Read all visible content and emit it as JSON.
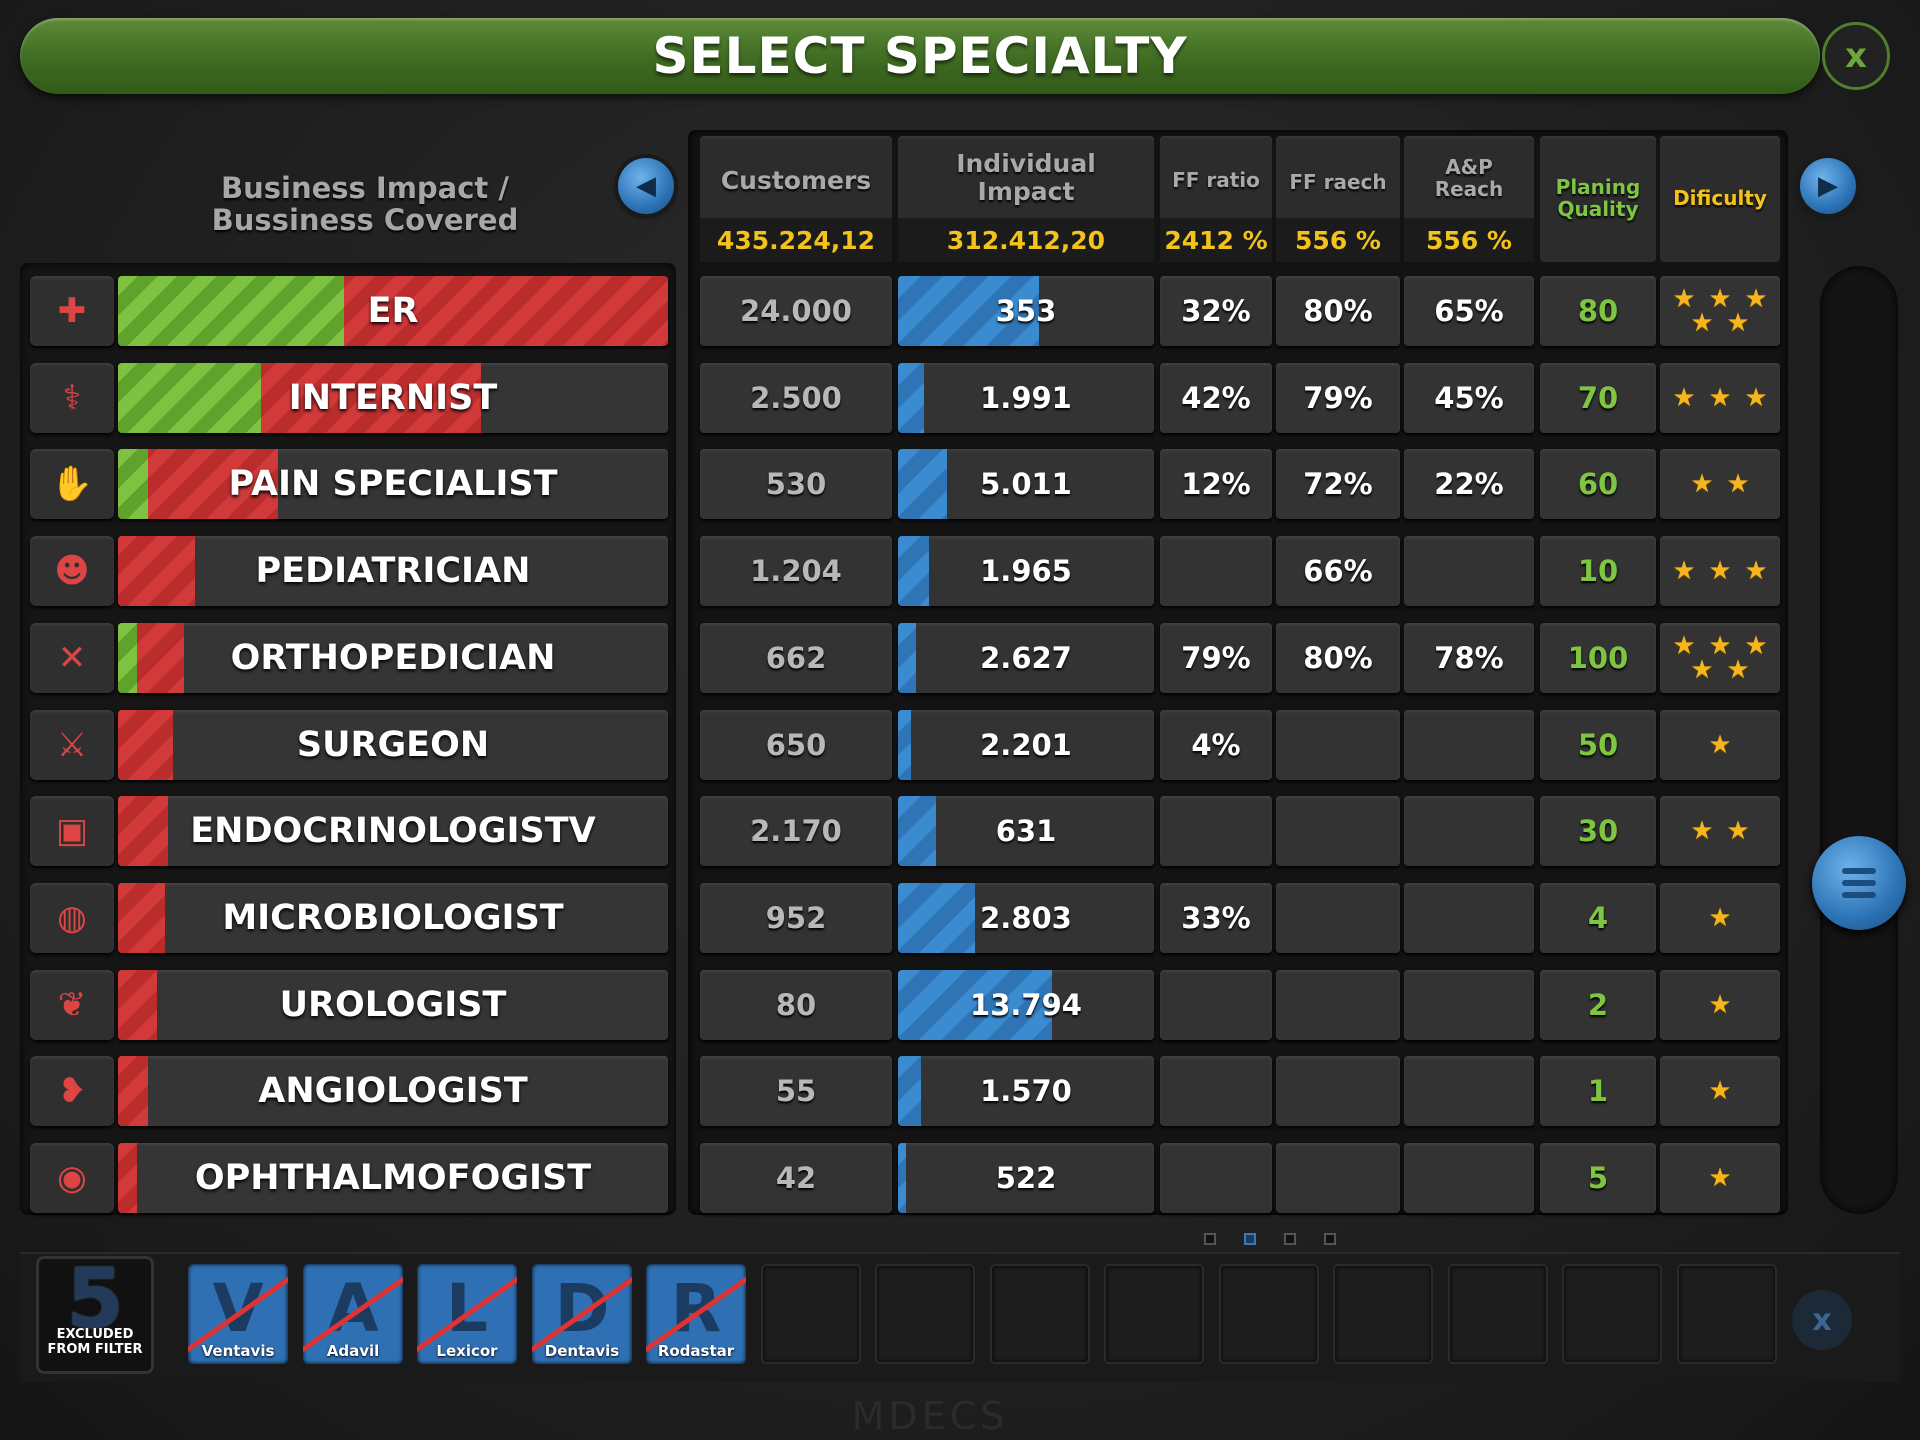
{
  "header": {
    "title": "SELECT SPECIALTY",
    "close_label": "x"
  },
  "left_header": {
    "line1": "Business Impact /",
    "line2": "Bussiness Covered"
  },
  "columns": {
    "customers": {
      "label": "Customers",
      "total": "435.224,12"
    },
    "impact": {
      "label_line1": "Individual",
      "label_line2": "Impact",
      "total": "312.412,20"
    },
    "ff_ratio": {
      "label": "FF ratio",
      "total": "2412 %"
    },
    "ff_reach": {
      "label": "FF raech",
      "total": "556 %"
    },
    "ap_reach": {
      "label_line1": "A&P",
      "label_line2": "Reach",
      "total": "556 %"
    },
    "quality": {
      "label_line1": "Planing",
      "label_line2": "Quality"
    },
    "difficulty": {
      "label": "Dificulty"
    }
  },
  "rows": [
    {
      "name": "ER",
      "icon": "medical-kit-icon",
      "green": 0.41,
      "red": 0.59,
      "customers": "24.000",
      "impact": "353",
      "impact_level": 0.55,
      "ff_ratio": "32%",
      "ff_reach": "80%",
      "ap_reach": "65%",
      "quality": "80",
      "stars": 5
    },
    {
      "name": "INTERNIST",
      "icon": "stethoscope-icon",
      "green": 0.26,
      "red": 0.4,
      "customers": "2.500",
      "impact": "1.991",
      "impact_level": 0.1,
      "ff_ratio": "42%",
      "ff_reach": "79%",
      "ap_reach": "45%",
      "quality": "70",
      "stars": 3
    },
    {
      "name": "PAIN SPECIALIST",
      "icon": "pain-icon",
      "green": 0.055,
      "red": 0.235,
      "customers": "530",
      "impact": "5.011",
      "impact_level": 0.19,
      "ff_ratio": "12%",
      "ff_reach": "72%",
      "ap_reach": "22%",
      "quality": "60",
      "stars": 2
    },
    {
      "name": "PEDIATRICIAN",
      "icon": "teddy-bear-icon",
      "green": 0,
      "red": 0.14,
      "customers": "1.204",
      "impact": "1.965",
      "impact_level": 0.12,
      "ff_ratio": "",
      "ff_reach": "66%",
      "ap_reach": "",
      "quality": "10",
      "stars": 3
    },
    {
      "name": "ORTHOPEDICIAN",
      "icon": "bone-icon",
      "green": 0.035,
      "red": 0.085,
      "customers": "662",
      "impact": "2.627",
      "impact_level": 0.07,
      "ff_ratio": "79%",
      "ff_reach": "80%",
      "ap_reach": "78%",
      "quality": "100",
      "stars": 5
    },
    {
      "name": "SURGEON",
      "icon": "scalpel-icon",
      "green": 0,
      "red": 0.1,
      "customers": "650",
      "impact": "2.201",
      "impact_level": 0.05,
      "ff_ratio": "4%",
      "ff_reach": "",
      "ap_reach": "",
      "quality": "50",
      "stars": 1
    },
    {
      "name": "ENDOCRINOLOGISTV",
      "icon": "monitor-icon",
      "green": 0,
      "red": 0.09,
      "customers": "2.170",
      "impact": "631",
      "impact_level": 0.15,
      "ff_ratio": "",
      "ff_reach": "",
      "ap_reach": "",
      "quality": "30",
      "stars": 2
    },
    {
      "name": "MICROBIOLOGIST",
      "icon": "petri-dish-icon",
      "green": 0,
      "red": 0.085,
      "customers": "952",
      "impact": "2.803",
      "impact_level": 0.3,
      "ff_ratio": "33%",
      "ff_reach": "",
      "ap_reach": "",
      "quality": "4",
      "stars": 1
    },
    {
      "name": "UROLOGIST",
      "icon": "kidney-icon",
      "green": 0,
      "red": 0.07,
      "customers": "80",
      "impact": "13.794",
      "impact_level": 0.6,
      "ff_ratio": "",
      "ff_reach": "",
      "ap_reach": "",
      "quality": "2",
      "stars": 1
    },
    {
      "name": "ANGIOLOGIST",
      "icon": "vessel-icon",
      "green": 0,
      "red": 0.055,
      "customers": "55",
      "impact": "1.570",
      "impact_level": 0.09,
      "ff_ratio": "",
      "ff_reach": "",
      "ap_reach": "",
      "quality": "1",
      "stars": 1
    },
    {
      "name": "OPHTHALMOFOGIST",
      "icon": "eye-icon",
      "green": 0,
      "red": 0.035,
      "customers": "42",
      "impact": "522",
      "impact_level": 0.03,
      "ff_ratio": "",
      "ff_reach": "",
      "ap_reach": "",
      "quality": "5",
      "stars": 1
    }
  ],
  "filter": {
    "excluded_count": "5",
    "excluded_line1": "EXCLUDED",
    "excluded_line2": "FROM FILTER",
    "items": [
      {
        "letter": "V",
        "name": "Ventavis"
      },
      {
        "letter": "A",
        "name": "Adavil"
      },
      {
        "letter": "L",
        "name": "Lexicor"
      },
      {
        "letter": "D",
        "name": "Dentavis"
      },
      {
        "letter": "R",
        "name": "Rodastar"
      }
    ],
    "empty_slots": 9,
    "close_label": "x"
  },
  "pagination": {
    "pages": 4,
    "active": 1
  },
  "brand": "MDECS",
  "colors": {
    "accent_green": "#7ec542",
    "accent_yellow": "#f3c21b",
    "bar_red": "#d23a3a",
    "bar_blue": "#3a8bd0"
  }
}
